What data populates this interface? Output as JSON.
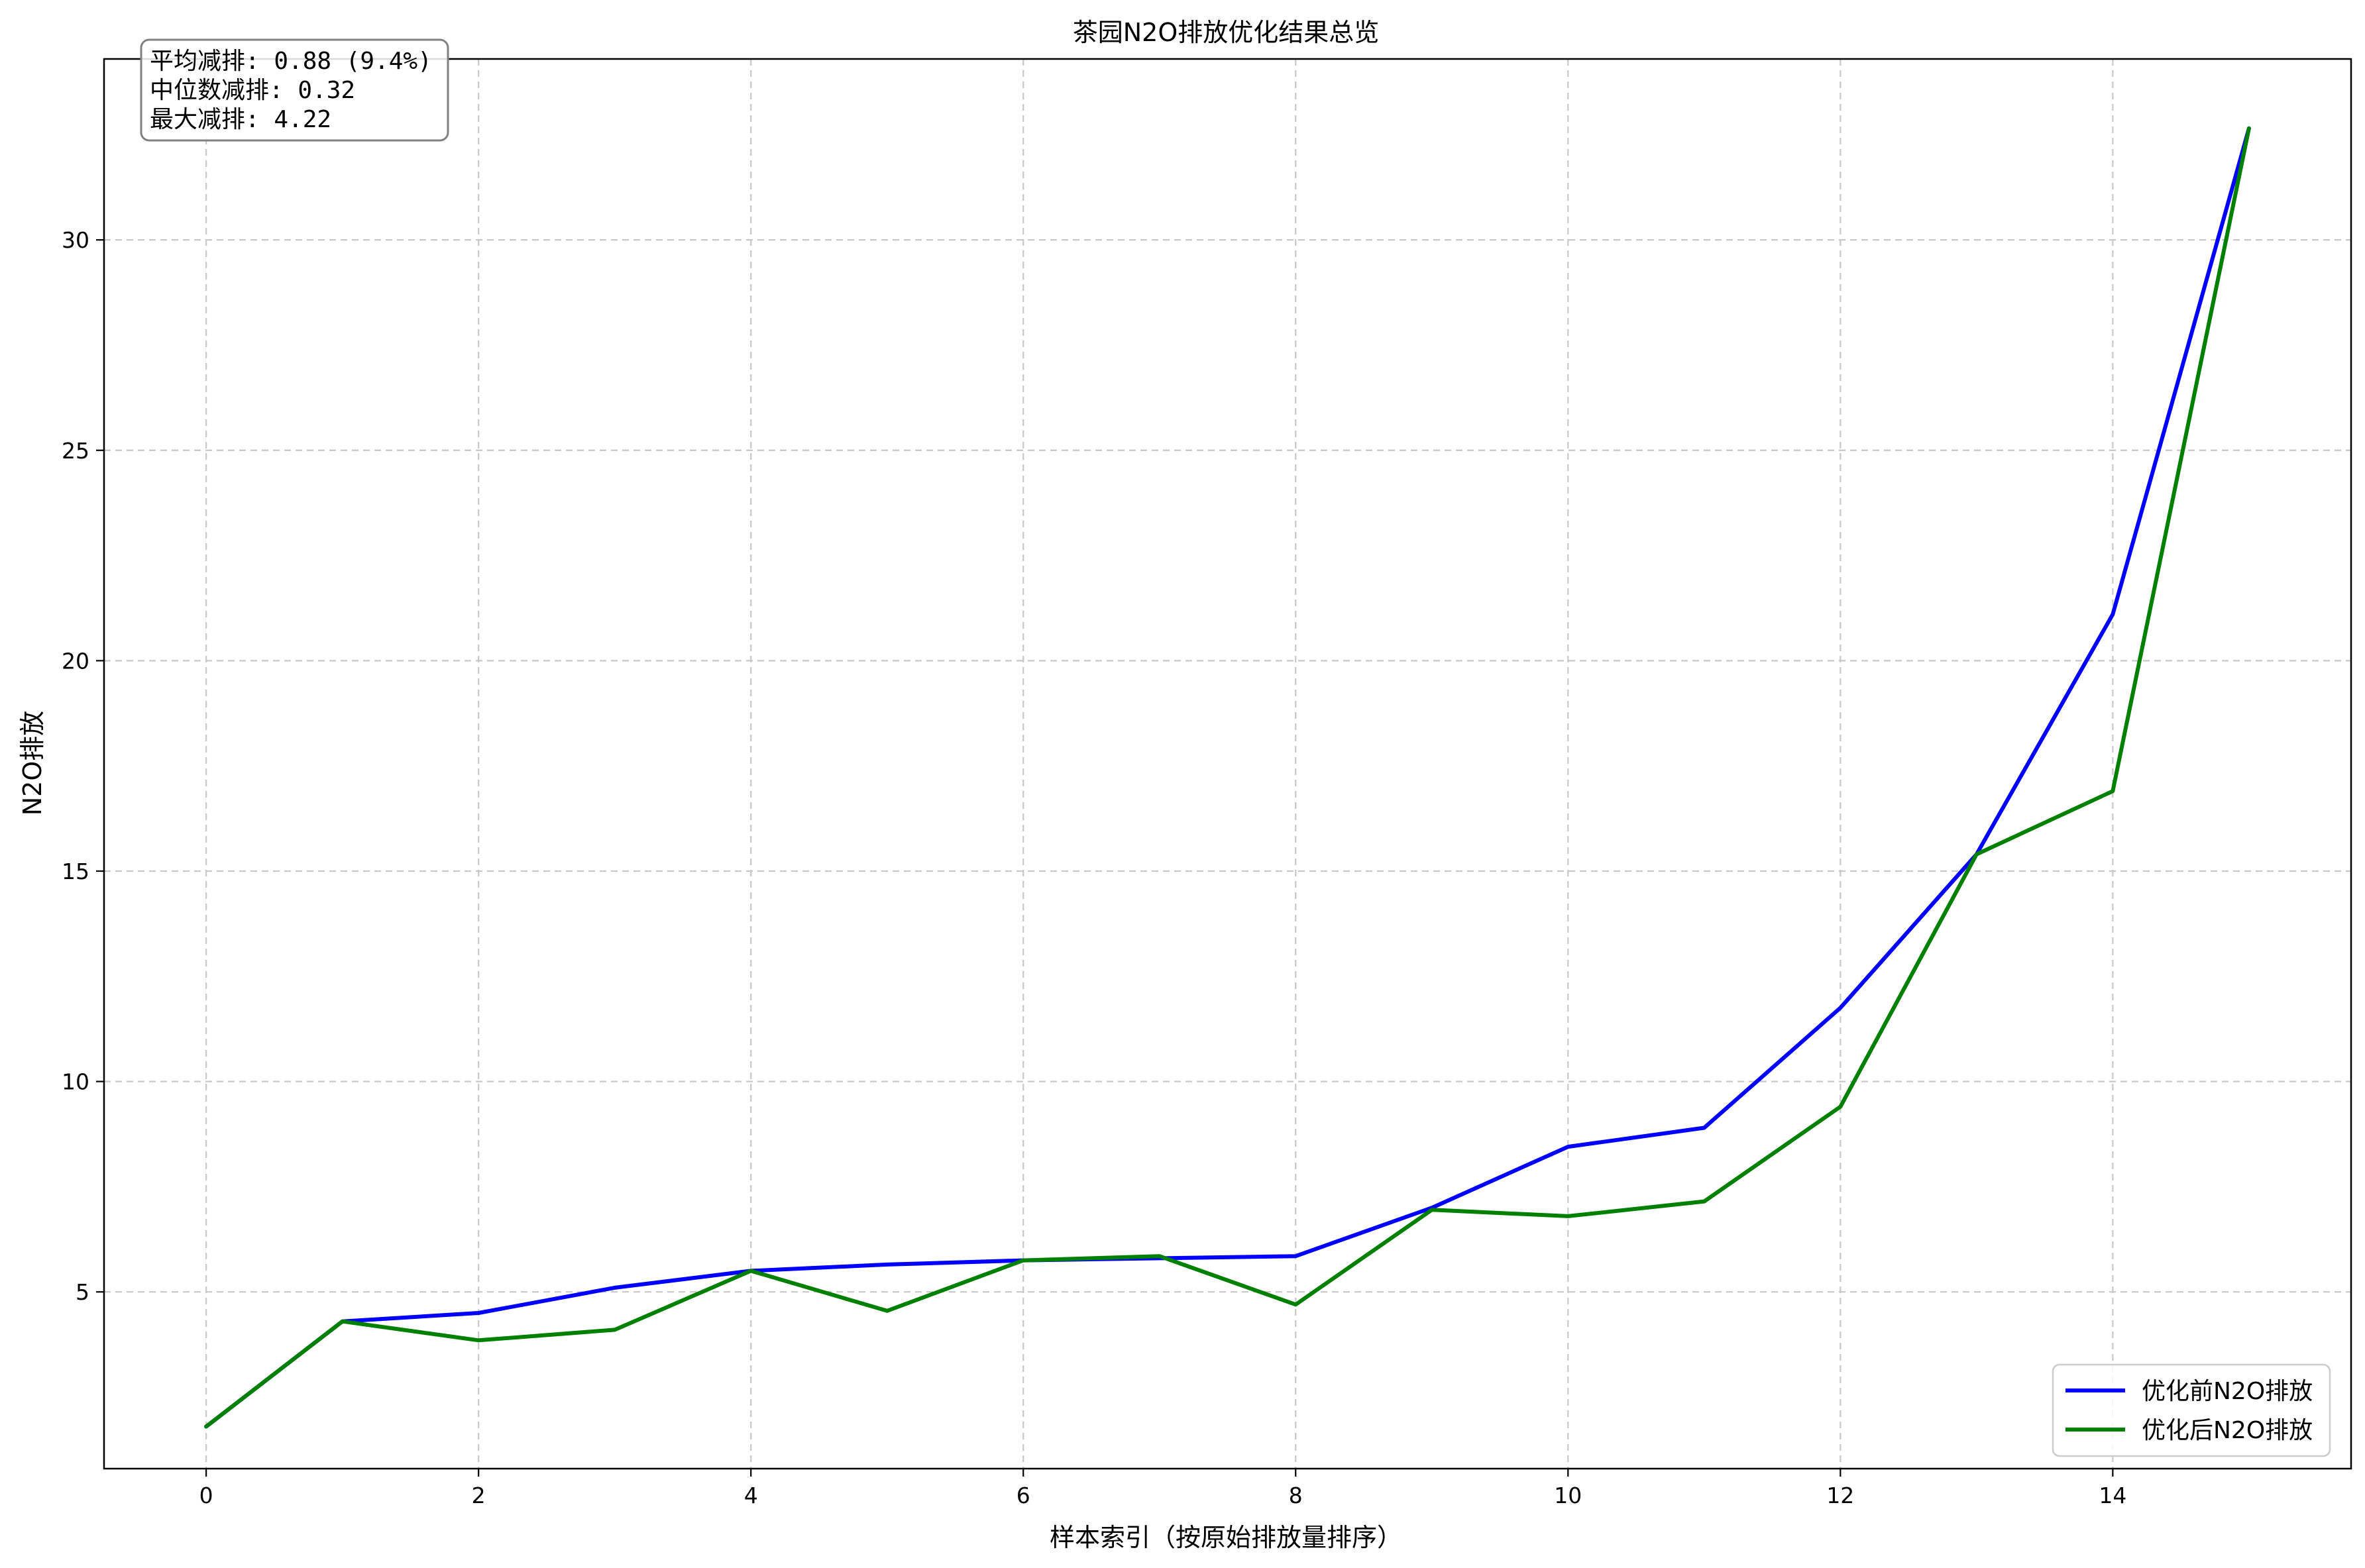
{
  "chart_data": {
    "type": "line",
    "title": "茶园N2O排放优化结果总览",
    "xlabel": "样本索引（按原始排放量排序）",
    "ylabel": "N2O排放",
    "xlim": [
      -0.75,
      15.75
    ],
    "ylim": [
      0.8,
      34.3
    ],
    "xticks": [
      0,
      2,
      4,
      6,
      8,
      10,
      12,
      14
    ],
    "yticks": [
      5,
      10,
      15,
      20,
      25,
      30
    ],
    "grid": true,
    "legend_position": "lower-right",
    "x": [
      0,
      1,
      2,
      3,
      4,
      5,
      6,
      7,
      8,
      9,
      10,
      11,
      12,
      13,
      14,
      15
    ],
    "series": [
      {
        "name": "优化前N2O排放",
        "color": "#0000ff",
        "values": [
          1.8,
          4.3,
          4.5,
          5.1,
          5.5,
          5.65,
          5.75,
          5.8,
          5.85,
          7.0,
          8.45,
          8.9,
          11.75,
          15.4,
          21.1,
          32.65
        ]
      },
      {
        "name": "优化后N2O排放",
        "color": "#008000",
        "values": [
          1.8,
          4.3,
          3.85,
          4.1,
          5.5,
          4.55,
          5.75,
          5.85,
          4.7,
          6.95,
          6.8,
          7.15,
          9.4,
          15.4,
          16.9,
          32.65
        ]
      }
    ],
    "annotations": [
      "平均减排: 0.88 (9.4%)",
      "中位数减排: 0.32",
      "最大减排: 4.22"
    ]
  }
}
